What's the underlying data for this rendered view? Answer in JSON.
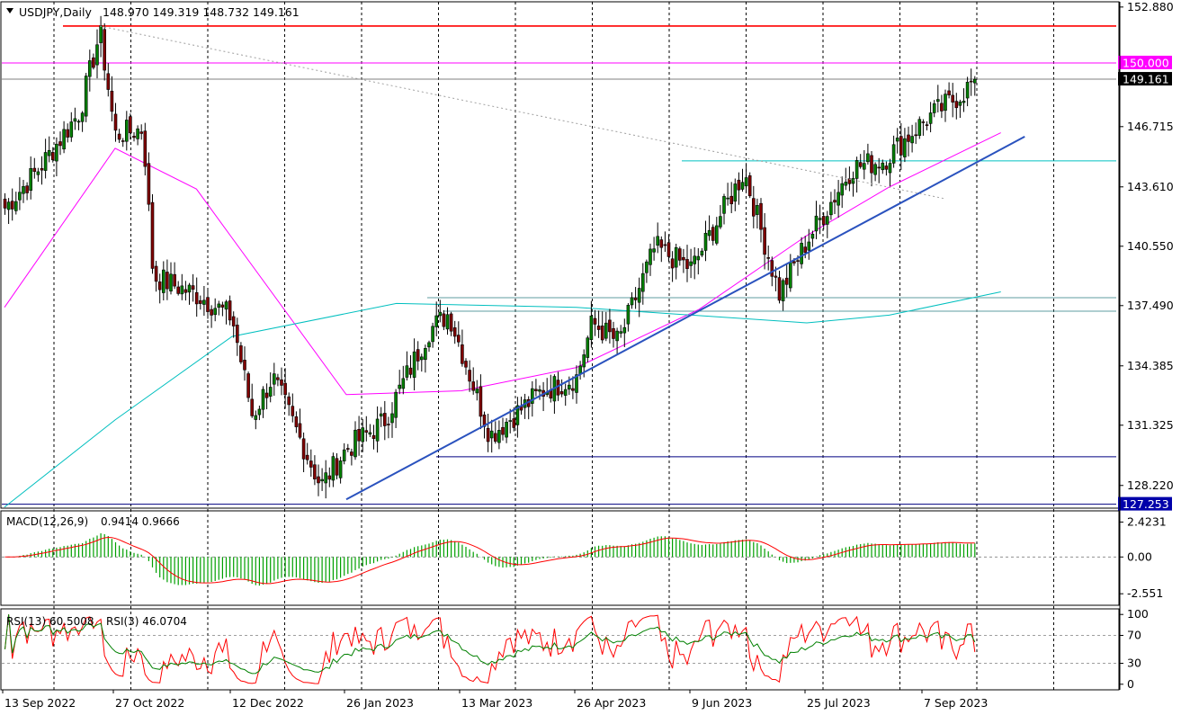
{
  "chart_data": {
    "type": "candlestick",
    "symbol_header": "USDJPY,Daily",
    "ohlc_header": "148.970 149.319 148.732 149.161",
    "price_axis": {
      "ticks": [
        "152.880",
        "146.715",
        "143.610",
        "140.550",
        "137.490",
        "134.385",
        "131.325",
        "128.220"
      ],
      "tick_values": [
        152.88,
        146.715,
        143.61,
        140.55,
        137.49,
        134.385,
        131.325,
        128.22
      ],
      "ylim": [
        127.05,
        153.15
      ]
    },
    "time_axis": {
      "labels": [
        "13 Sep 2022",
        "27 Oct 2022",
        "12 Dec 2022",
        "26 Jan 2023",
        "13 Mar 2023",
        "26 Apr 2023",
        "9 Jun 2023",
        "25 Jul 2023",
        "7 Sep 2023"
      ],
      "grid": "dashed vertical"
    },
    "price_tags": [
      {
        "text": "150.000",
        "value": 150.0,
        "color": "#ff00ff"
      },
      {
        "text": "149.161",
        "value": 149.161,
        "color": "#000000"
      },
      {
        "text": "127.253",
        "value": 127.253,
        "color": "#0000aa"
      }
    ],
    "horizontal_lines": [
      {
        "value": 151.9,
        "color": "#ff0000"
      },
      {
        "value": 150.0,
        "color": "#ff00ff"
      },
      {
        "value": 149.161,
        "color": "#808080"
      },
      {
        "value": 144.95,
        "color": "#00c0c0"
      },
      {
        "value": 137.9,
        "color": "#5f9ea0"
      },
      {
        "value": 137.2,
        "color": "#5f9ea0"
      },
      {
        "value": 129.7,
        "color": "#000080"
      },
      {
        "value": 127.253,
        "color": "#000080"
      }
    ],
    "trendlines": [
      {
        "name": "support",
        "from": [
          "26 Jan 2023",
          127.5
        ],
        "to": [
          "Oct 2023",
          146.2
        ],
        "color": "#2a52be"
      },
      {
        "name": "resistance",
        "from": [
          "21 Oct 2022",
          151.9
        ],
        "to": [
          "Sep 2023",
          143.0
        ],
        "color": "#a0a0a0",
        "style": "dotted"
      }
    ],
    "candles": {
      "count": 264,
      "first_open": 142.8,
      "last_close": 149.161,
      "up_color": "#008000",
      "down_color": "#800000",
      "anchors": [
        {
          "date": "13 Sep 2022",
          "close": 142.5
        },
        {
          "date": "27 Sep 2022",
          "close": 144.6
        },
        {
          "date": "13 Oct 2022",
          "close": 147.5
        },
        {
          "date": "21 Oct 2022",
          "close": 151.6
        },
        {
          "date": "27 Oct 2022",
          "close": 146.3
        },
        {
          "date": "7 Nov 2022",
          "close": 146.6
        },
        {
          "date": "11 Nov 2022",
          "close": 139.0
        },
        {
          "date": "29 Nov 2022",
          "close": 138.0
        },
        {
          "date": "12 Dec 2022",
          "close": 136.9
        },
        {
          "date": "20 Dec 2022",
          "close": 131.8
        },
        {
          "date": "28 Dec 2022",
          "close": 133.8
        },
        {
          "date": "16 Jan 2023",
          "close": 128.2
        },
        {
          "date": "26 Jan 2023",
          "close": 130.1
        },
        {
          "date": "10 Feb 2023",
          "close": 131.5
        },
        {
          "date": "28 Feb 2023",
          "close": 136.2
        },
        {
          "date": "8 Mar 2023",
          "close": 137.1
        },
        {
          "date": "24 Mar 2023",
          "close": 130.8
        },
        {
          "date": "13 Apr 2023",
          "close": 133.1
        },
        {
          "date": "26 Apr 2023",
          "close": 133.8
        },
        {
          "date": "2 May 2023",
          "close": 136.6
        },
        {
          "date": "12 May 2023",
          "close": 135.6
        },
        {
          "date": "26 May 2023",
          "close": 140.5
        },
        {
          "date": "9 Jun 2023",
          "close": 139.4
        },
        {
          "date": "30 Jun 2023",
          "close": 144.4
        },
        {
          "date": "14 Jul 2023",
          "close": 138.1
        },
        {
          "date": "25 Jul 2023",
          "close": 140.8
        },
        {
          "date": "11 Aug 2023",
          "close": 144.6
        },
        {
          "date": "23 Aug 2023",
          "close": 145.0
        },
        {
          "date": "7 Sep 2023",
          "close": 147.0
        },
        {
          "date": "22 Sep 2023",
          "close": 148.5
        },
        {
          "date": "2 Oct 2023",
          "close": 150.0
        },
        {
          "date": "6 Oct 2023",
          "close": 149.161
        }
      ]
    },
    "moving_averages": [
      {
        "color": "#ff00ff",
        "points": [
          [
            "13 Sep 2022",
            137.4
          ],
          [
            "27 Oct 2022",
            145.6
          ],
          [
            "28 Nov 2022",
            143.5
          ],
          [
            "26 Jan 2023",
            132.9
          ],
          [
            "13 Mar 2023",
            133.1
          ],
          [
            "26 Apr 2023",
            134.3
          ],
          [
            "12 Jun 2023",
            137.3
          ],
          [
            "25 Jul 2023",
            141.1
          ],
          [
            "25 Aug 2023",
            143.6
          ],
          [
            "6 Oct 2023",
            146.4
          ]
        ]
      },
      {
        "color": "#00bfbf",
        "points": [
          [
            "13 Sep 2022",
            127.1
          ],
          [
            "27 Oct 2022",
            131.6
          ],
          [
            "12 Dec 2022",
            135.9
          ],
          [
            "15 Feb 2023",
            137.6
          ],
          [
            "26 Apr 2023",
            137.4
          ],
          [
            "25 Jul 2023",
            136.6
          ],
          [
            "25 Aug 2023",
            137.0
          ],
          [
            "6 Oct 2023",
            138.2
          ]
        ]
      }
    ],
    "macd": {
      "label": "MACD(12,26,9)",
      "values": "0.9414 0.9666",
      "params": [
        12,
        26,
        9
      ],
      "main": 0.9414,
      "signal": 0.9666,
      "ticks": [
        "2.4231",
        "0.00",
        "-2.551"
      ],
      "tick_values": [
        2.4231,
        0.0,
        -2.551
      ],
      "ylim": [
        -3.35,
        3.2
      ],
      "histogram_color": "#00a000",
      "signal_color": "#ff0000"
    },
    "rsi": {
      "label": "RSI(13) 60.5008",
      "label2": "RSI(3) 46.0704",
      "rsi13": 60.5008,
      "rsi3": 46.0704,
      "ticks": [
        "100",
        "70",
        "30",
        "0"
      ],
      "tick_values": [
        100,
        70,
        30,
        0
      ],
      "ylim": [
        -8,
        108
      ],
      "colors": {
        "rsi13": "#008000",
        "rsi3": "#ff0000"
      }
    }
  }
}
